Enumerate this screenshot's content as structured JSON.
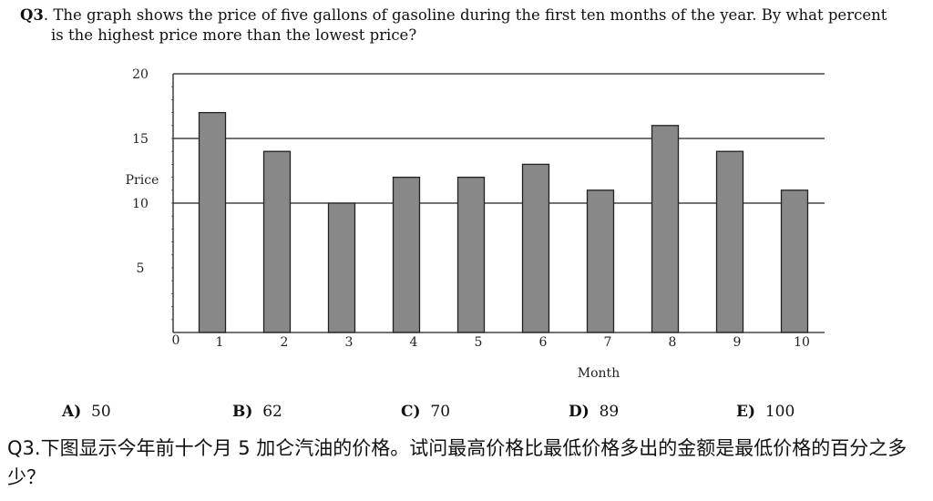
{
  "question": {
    "number": "Q3",
    "text_line1": ". The graph shows the price of five gallons of gasoline during the first ten months of the year. By what percent",
    "text_line2": "is the highest price more than the lowest price?"
  },
  "chart_data": {
    "type": "bar",
    "categories": [
      "1",
      "2",
      "3",
      "4",
      "5",
      "6",
      "7",
      "8",
      "9",
      "10"
    ],
    "values": [
      17,
      14,
      10,
      12,
      12,
      13,
      11,
      16,
      14,
      11
    ],
    "title": "",
    "xlabel": "Month",
    "ylabel": "Price",
    "x_origin_label": "0",
    "ylim": [
      0,
      20
    ],
    "yticks": [
      5,
      10,
      15,
      20
    ],
    "grid": "horizontal at 10, 15, 20",
    "bar_color": "#888888"
  },
  "options": [
    {
      "letter": "A)",
      "value": "50"
    },
    {
      "letter": "B)",
      "value": "62"
    },
    {
      "letter": "C)",
      "value": "70"
    },
    {
      "letter": "D)",
      "value": "89"
    },
    {
      "letter": "E)",
      "value": "100"
    }
  ],
  "question_zh": "Q3.下图显示今年前十个月 5 加仑汽油的价格。试问最高价格比最低价格多出的金额是最低价格的百分之多少？"
}
